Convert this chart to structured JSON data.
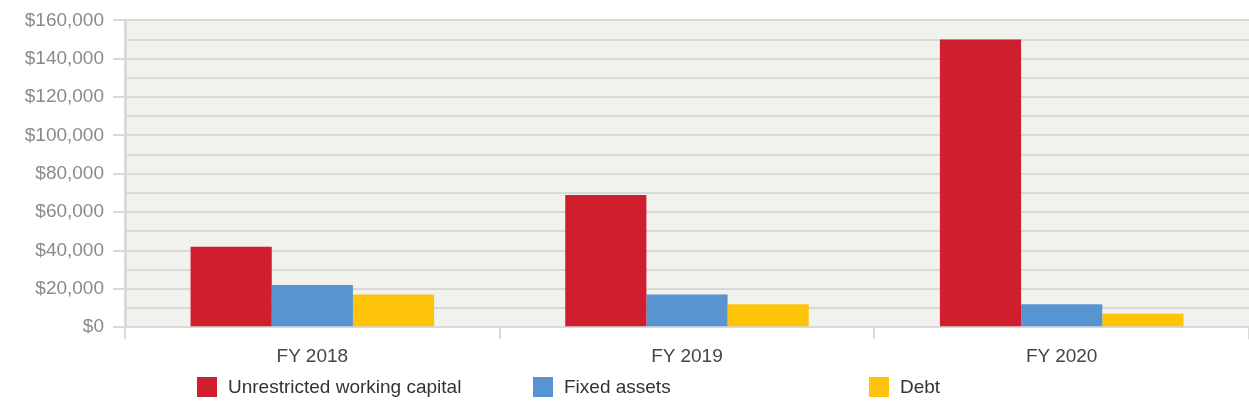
{
  "chart_data": {
    "type": "bar",
    "categories": [
      "FY 2018",
      "FY 2019",
      "FY 2020"
    ],
    "series": [
      {
        "name": "Unrestricted working capital",
        "color": "#cf1f2e",
        "values": [
          42000,
          69000,
          150000
        ]
      },
      {
        "name": "Fixed assets",
        "color": "#5894d0",
        "values": [
          22000,
          17000,
          12000
        ]
      },
      {
        "name": "Debt",
        "color": "#fec40c",
        "values": [
          17000,
          12000,
          7000
        ]
      }
    ],
    "ylim": [
      0,
      160000
    ],
    "yticks": [
      {
        "value": 0,
        "label": "$0"
      },
      {
        "value": 10000,
        "label": null
      },
      {
        "value": 20000,
        "label": "$20,000"
      },
      {
        "value": 30000,
        "label": null
      },
      {
        "value": 40000,
        "label": "$40,000"
      },
      {
        "value": 50000,
        "label": null
      },
      {
        "value": 60000,
        "label": "$60,000"
      },
      {
        "value": 70000,
        "label": null
      },
      {
        "value": 80000,
        "label": "$80,000"
      },
      {
        "value": 90000,
        "label": null
      },
      {
        "value": 100000,
        "label": "$100,000"
      },
      {
        "value": 110000,
        "label": null
      },
      {
        "value": 120000,
        "label": "$120,000"
      },
      {
        "value": 130000,
        "label": null
      },
      {
        "value": 140000,
        "label": "$140,000"
      },
      {
        "value": 150000,
        "label": null
      },
      {
        "value": 160000,
        "label": "$160,000"
      }
    ],
    "grid": "y",
    "legend": "bottom"
  }
}
